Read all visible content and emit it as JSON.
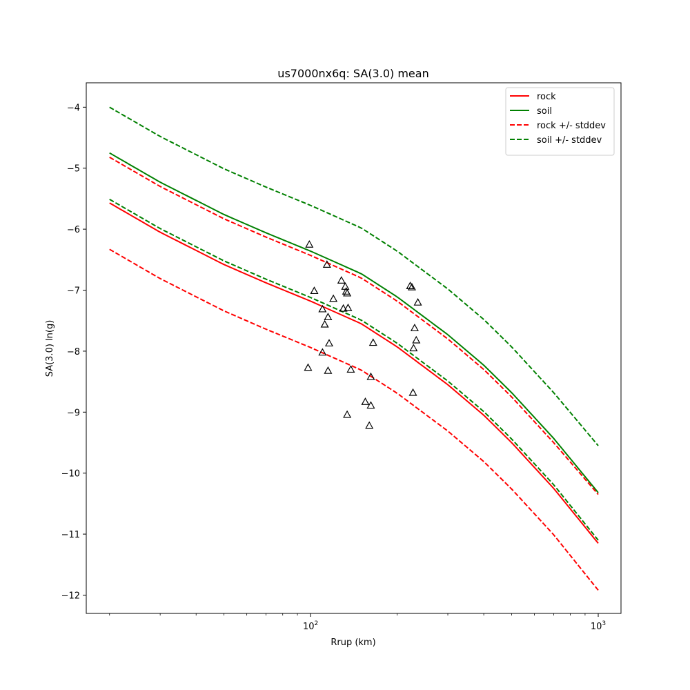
{
  "chart_data": {
    "type": "line",
    "title": "us7000nx6q: SA(3.0) mean",
    "xlabel": "Rrup (km)",
    "ylabel": "SA(3.0) ln(g)",
    "xscale": "log",
    "xlim": [
      16.6,
      1200
    ],
    "ylim": [
      -12.3,
      -3.6
    ],
    "yticks": [
      -4,
      -5,
      -6,
      -7,
      -8,
      -9,
      -10,
      -11,
      -12
    ],
    "ytick_labels": [
      "−4",
      "−5",
      "−6",
      "−7",
      "−8",
      "−9",
      "−10",
      "−11",
      "−12"
    ],
    "xticks": [
      100,
      1000
    ],
    "xtick_labels": [
      {
        "base": "10",
        "exp": "2"
      },
      {
        "base": "10",
        "exp": "3"
      }
    ],
    "grid": false,
    "legend_position": "top-right",
    "colors": {
      "rock": "#ff0000",
      "soil": "#008000",
      "points": "#000000"
    },
    "series": [
      {
        "name": "rock",
        "color": "#ff0000",
        "style": "solid",
        "x": [
          20,
          30,
          50,
          70,
          100,
          150,
          200,
          300,
          400,
          500,
          700,
          1000
        ],
        "y": [
          -5.57,
          -6.05,
          -6.58,
          -6.88,
          -7.18,
          -7.55,
          -7.93,
          -8.55,
          -9.05,
          -9.5,
          -10.25,
          -11.15
        ]
      },
      {
        "name": "soil",
        "color": "#008000",
        "style": "solid",
        "x": [
          20,
          30,
          50,
          70,
          100,
          150,
          200,
          300,
          400,
          500,
          700,
          1000
        ],
        "y": [
          -4.75,
          -5.23,
          -5.76,
          -6.06,
          -6.36,
          -6.73,
          -7.11,
          -7.73,
          -8.23,
          -8.68,
          -9.43,
          -10.32
        ]
      },
      {
        "name": "rock +/- stddev",
        "color": "#ff0000",
        "style": "dashed",
        "x": [
          20,
          30,
          50,
          70,
          100,
          150,
          200,
          300,
          400,
          500,
          700,
          1000
        ],
        "y": [
          -4.82,
          -5.3,
          -5.83,
          -6.13,
          -6.43,
          -6.8,
          -7.18,
          -7.8,
          -8.3,
          -8.75,
          -9.5,
          -10.35
        ]
      },
      {
        "name": "",
        "color": "#ff0000",
        "style": "dashed",
        "x": [
          20,
          30,
          50,
          70,
          100,
          150,
          200,
          300,
          400,
          500,
          700,
          1000
        ],
        "y": [
          -6.33,
          -6.81,
          -7.34,
          -7.64,
          -7.94,
          -8.31,
          -8.69,
          -9.31,
          -9.81,
          -10.26,
          -11.01,
          -11.92
        ]
      },
      {
        "name": "soil +/- stddev",
        "color": "#008000",
        "style": "dashed",
        "x": [
          20,
          30,
          50,
          70,
          100,
          150,
          200,
          300,
          400,
          500,
          700,
          1000
        ],
        "y": [
          -4.0,
          -4.48,
          -5.01,
          -5.31,
          -5.61,
          -5.98,
          -6.36,
          -6.98,
          -7.48,
          -7.93,
          -8.68,
          -9.55
        ]
      },
      {
        "name": "",
        "color": "#008000",
        "style": "dashed",
        "x": [
          20,
          30,
          50,
          70,
          100,
          150,
          200,
          300,
          400,
          500,
          700,
          1000
        ],
        "y": [
          -5.51,
          -5.99,
          -6.52,
          -6.82,
          -7.12,
          -7.49,
          -7.87,
          -8.49,
          -8.99,
          -9.44,
          -10.19,
          -11.1
        ]
      }
    ],
    "points": {
      "marker": "triangle-open",
      "color": "#000000",
      "x": [
        99,
        103,
        110,
        112,
        114,
        115,
        116,
        120,
        128,
        132,
        133,
        134,
        135,
        130,
        110,
        98,
        115,
        138,
        162,
        165,
        155,
        162,
        160,
        134,
        225,
        222,
        236,
        230,
        233,
        228,
        227
      ],
      "y": [
        -6.25,
        -7.01,
        -7.31,
        -7.56,
        -6.58,
        -7.44,
        -7.87,
        -7.14,
        -6.84,
        -6.94,
        -7.02,
        -7.05,
        -7.29,
        -7.3,
        -8.02,
        -8.27,
        -8.32,
        -8.3,
        -8.42,
        -7.86,
        -8.83,
        -8.89,
        -9.22,
        -9.04,
        -6.95,
        -6.93,
        -7.2,
        -7.62,
        -7.82,
        -7.95,
        -8.68
      ]
    }
  }
}
